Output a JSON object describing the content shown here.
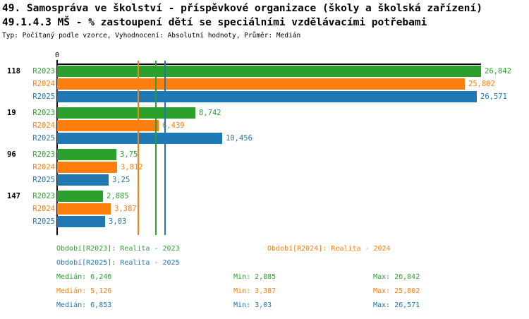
{
  "header": {
    "title_line1": "49. Samospráva ve školství - příspěvkové organizace (školy a školská zařízení)",
    "title_line2": "49.1.4.3 MŠ - % zastoupení dětí se speciálními vzdělávacími potřebami",
    "subtitle": "Typ: Počítaný podle vzorce, Vyhodnocení: Absolutní hodnoty, Průměr: Medián"
  },
  "chart_data": {
    "type": "bar",
    "orientation": "horizontal",
    "title": "49.1.4.3 MŠ - % zastoupení dětí se speciálními vzdělávacími potřebami",
    "axis": {
      "origin_label": "0",
      "xmin": 0,
      "xmax": 26.842,
      "grid": "median-lines-only"
    },
    "series": [
      {
        "name": "R2023",
        "color": "#2ca02c",
        "median": 6.246,
        "median_label": "6,246"
      },
      {
        "name": "R2024",
        "color": "#ff7f0e",
        "median": 5.126,
        "median_label": "5,126"
      },
      {
        "name": "R2025",
        "color": "#1f77b4",
        "median": 6.853,
        "median_label": "6,853"
      }
    ],
    "groups": [
      {
        "label": "118",
        "values": [
          26.842,
          25.802,
          26.571
        ],
        "value_labels": [
          "26,842",
          "25,802",
          "26,571"
        ]
      },
      {
        "label": "19",
        "values": [
          8.742,
          6.439,
          10.456
        ],
        "value_labels": [
          "8,742",
          "6,439",
          "10,456"
        ]
      },
      {
        "label": "96",
        "values": [
          3.75,
          3.812,
          3.25
        ],
        "value_labels": [
          "3,75",
          "3,812",
          "3,25"
        ]
      },
      {
        "label": "147",
        "values": [
          2.885,
          3.387,
          3.03
        ],
        "value_labels": [
          "2,885",
          "3,387",
          "3,03"
        ]
      }
    ]
  },
  "legend": {
    "r2023": "Období[R2023]: Realita - 2023",
    "r2024": "Období[R2024]: Realita - 2024",
    "r2025": "Období[R2025]: Realita - 2025"
  },
  "stats": {
    "rows": [
      {
        "color": "#2ca02c",
        "median": "Medián: 6,246",
        "min": "Min: 2,885",
        "max": "Max: 26,842"
      },
      {
        "color": "#ff7f0e",
        "median": "Medián: 5,126",
        "min": "Min: 3,387",
        "max": "Max: 25,802"
      },
      {
        "color": "#1f77b4",
        "median": "Medián: 6,853",
        "min": "Min: 3,03",
        "max": "Max: 26,571"
      }
    ]
  }
}
